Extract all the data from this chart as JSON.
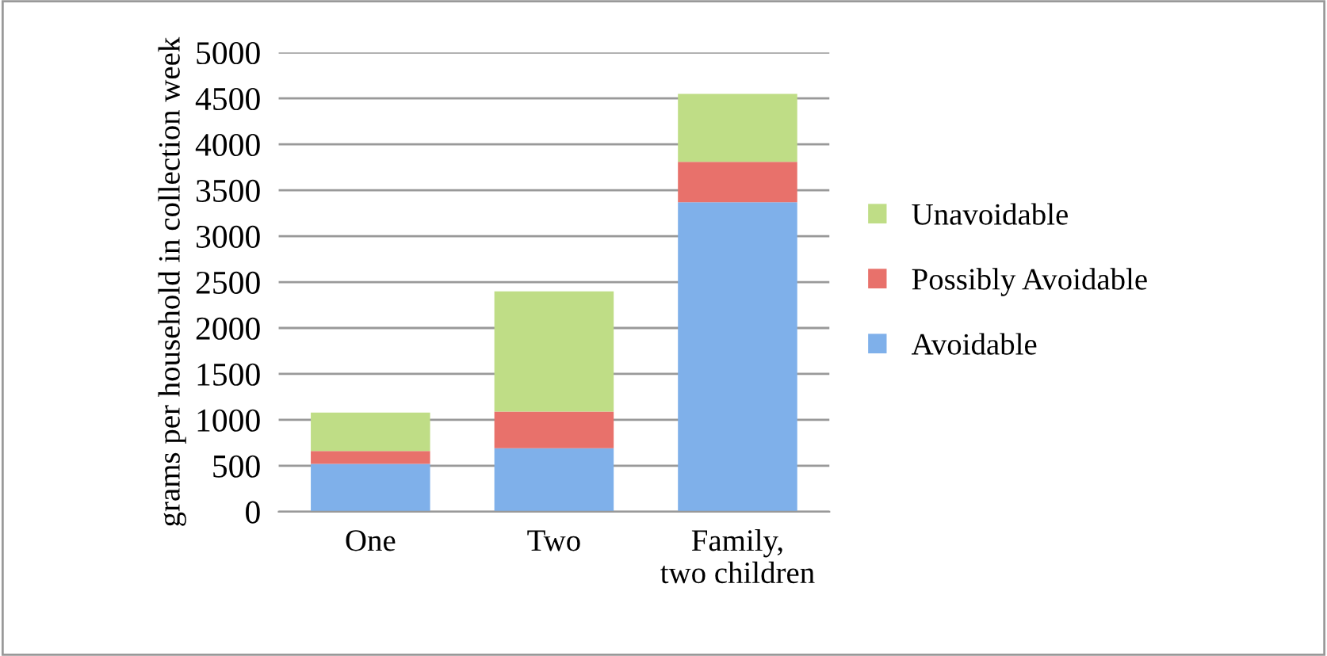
{
  "chart_data": {
    "type": "bar",
    "stacked": true,
    "ylabel": "grams per household in collection week",
    "categories": [
      "One",
      "Two",
      "Family, two children"
    ],
    "series": [
      {
        "name": "Avoidable",
        "color": "#7fb0ea",
        "values": [
          520,
          690,
          3370
        ]
      },
      {
        "name": "Possibly Avoidable",
        "color": "#e8716b",
        "values": [
          140,
          400,
          440
        ]
      },
      {
        "name": "Unavoidable",
        "color": "#bfdd86",
        "values": [
          420,
          1310,
          740
        ]
      }
    ],
    "ylim": [
      0,
      5000
    ],
    "yticks": [
      0,
      500,
      1000,
      1500,
      2000,
      2500,
      3000,
      3500,
      4000,
      4500,
      5000
    ],
    "grid": "y",
    "legend": "right"
  }
}
